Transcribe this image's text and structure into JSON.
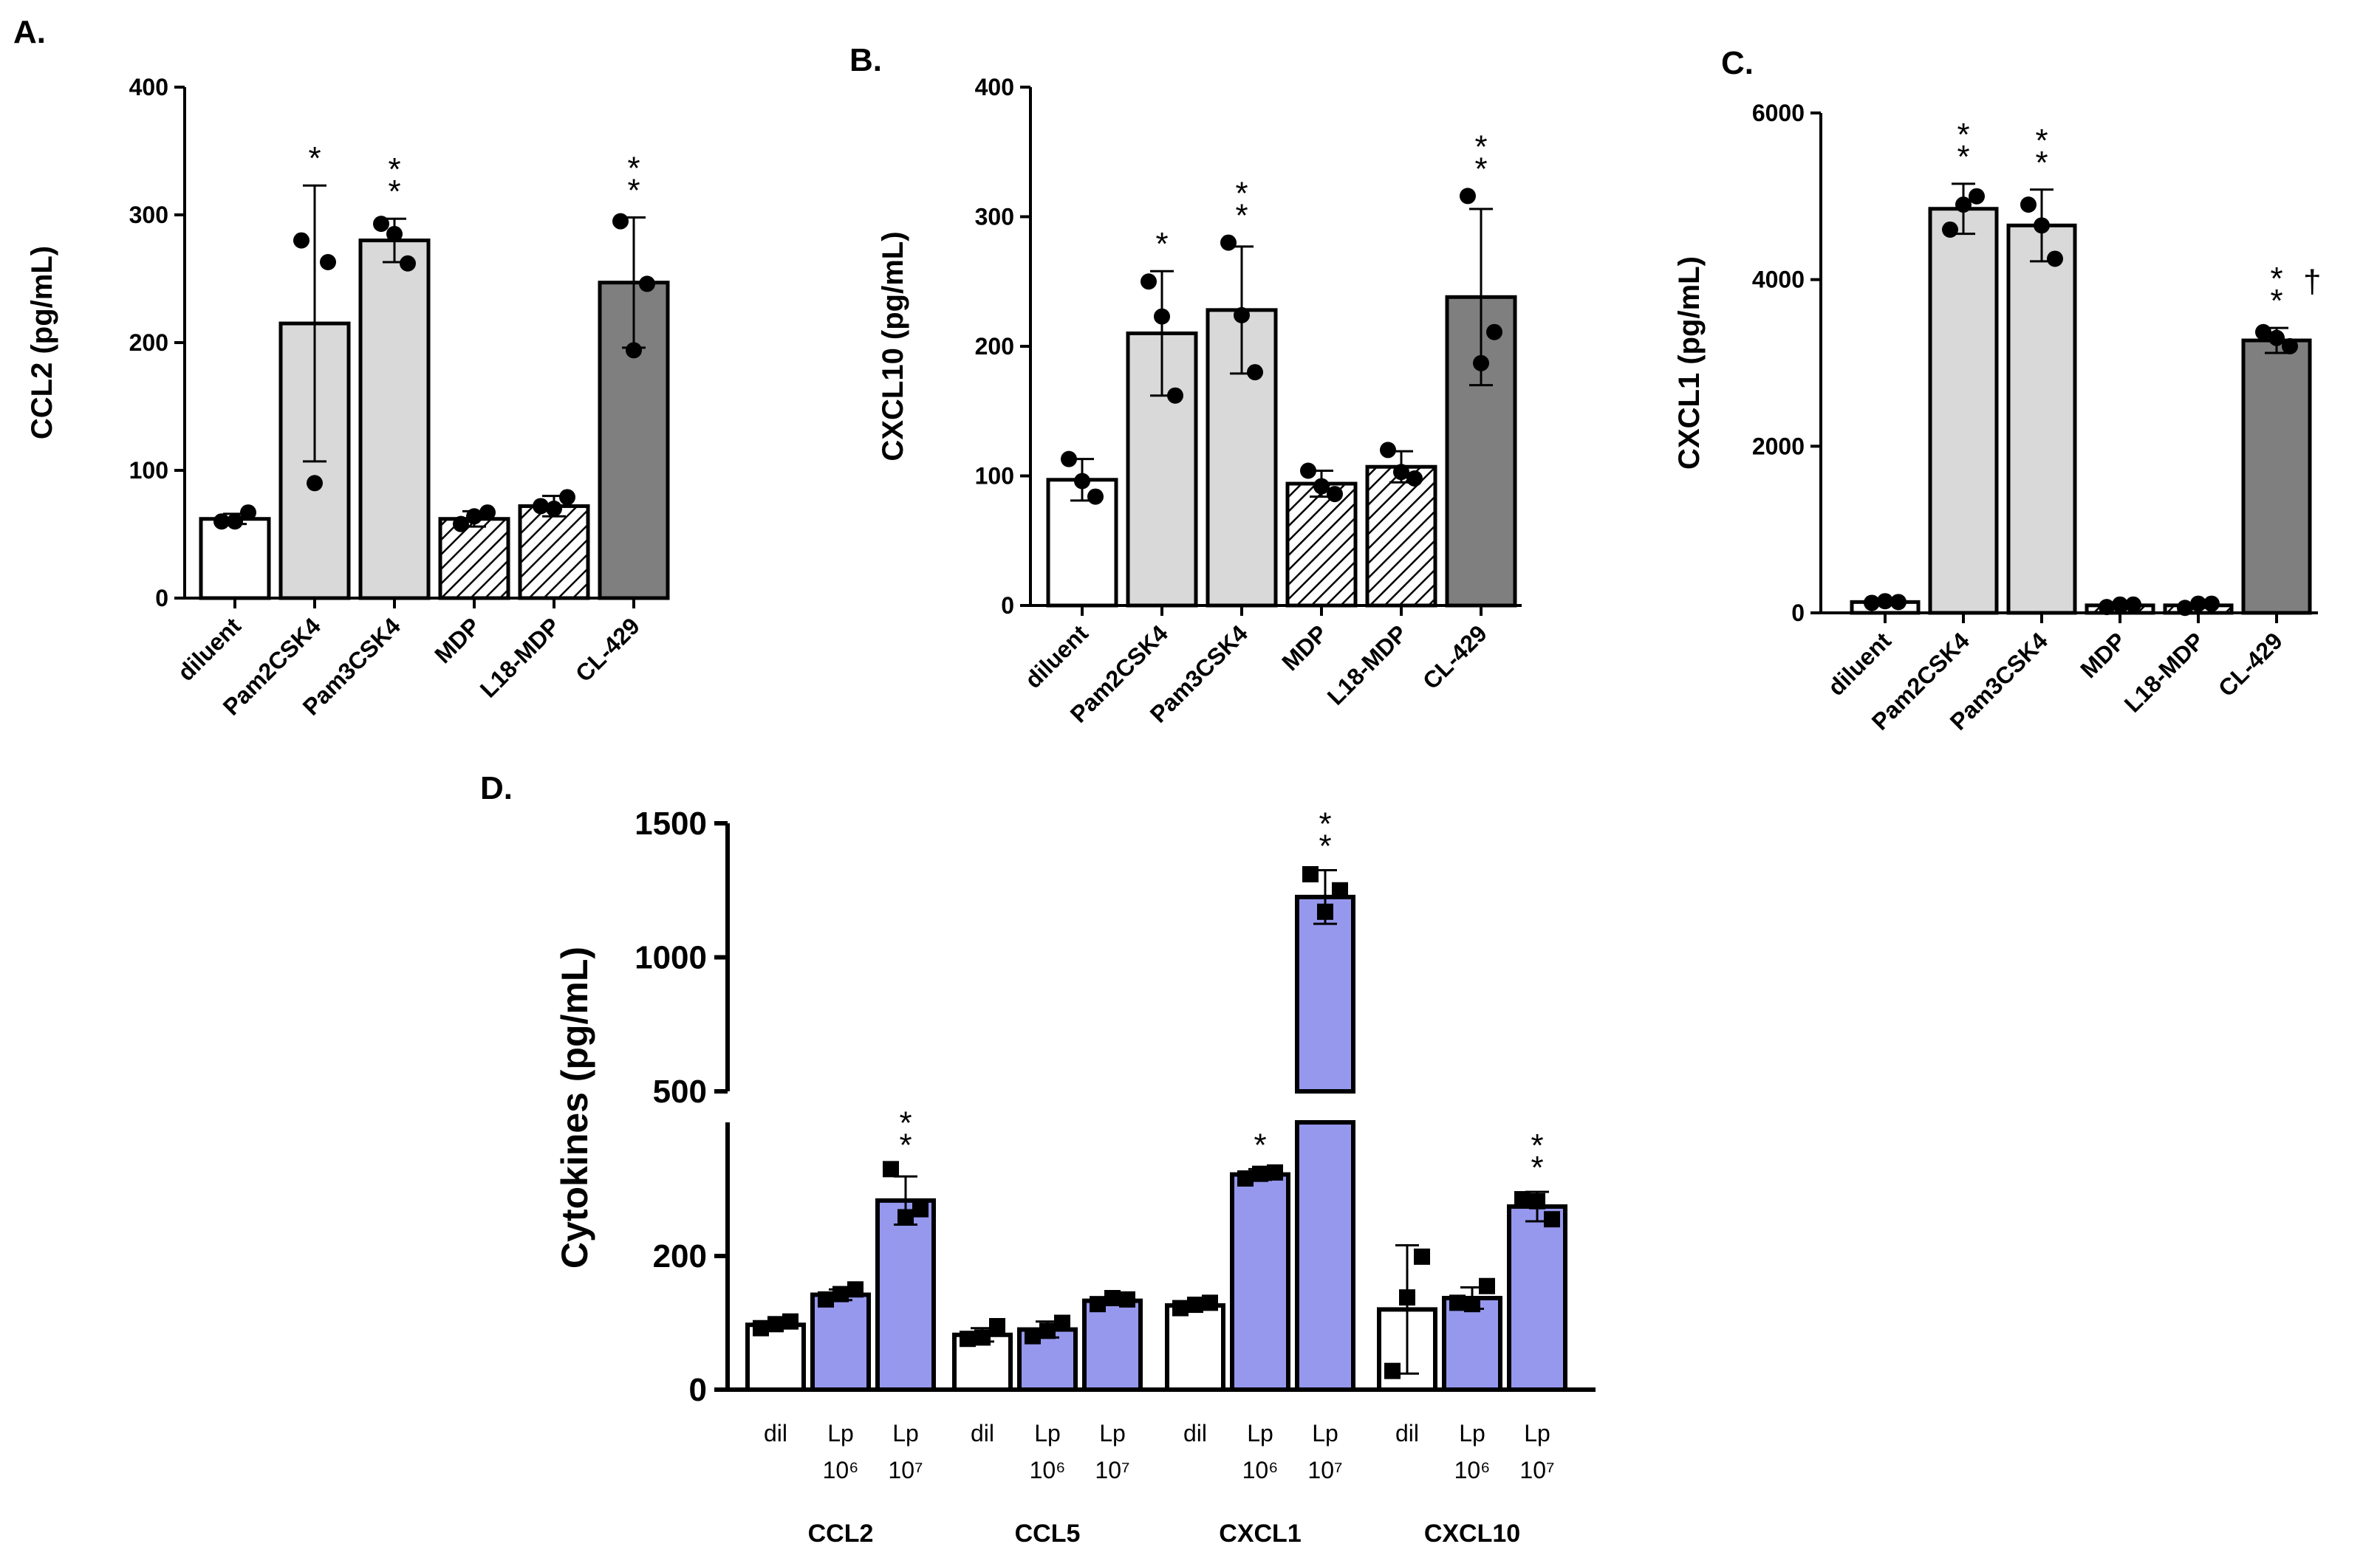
{
  "chart_data": [
    {
      "panel": "A.",
      "type": "bar",
      "ylabel": "CCL2 (pg/mL)",
      "ylim": [
        0,
        400
      ],
      "yticks": [
        "0",
        "100",
        "200",
        "300",
        "400"
      ],
      "categories": [
        "diluent",
        "Pam2CSK4",
        "Pam3CSK4",
        "MDP",
        "L18-MDP",
        "CL-429"
      ],
      "values": [
        62,
        215,
        280,
        62,
        72,
        247
      ],
      "errors": [
        4,
        108,
        17,
        6,
        8,
        51
      ],
      "points": [
        [
          60,
          67,
          60
        ],
        [
          280,
          263,
          90
        ],
        [
          293,
          262,
          285
        ],
        [
          58,
          67,
          64
        ],
        [
          72,
          79,
          70
        ],
        [
          295,
          246,
          194
        ]
      ],
      "significance": [
        "",
        "*",
        "**",
        "",
        "",
        "**"
      ],
      "fills": [
        "white",
        "light",
        "light",
        "hatched",
        "hatched",
        "dark"
      ]
    },
    {
      "panel": "B.",
      "type": "bar",
      "ylabel": "CXCL10 (pg/mL)",
      "ylim": [
        0,
        400
      ],
      "yticks": [
        "0",
        "100",
        "200",
        "300",
        "400"
      ],
      "categories": [
        "diluent",
        "Pam2CSK4",
        "Pam3CSK4",
        "MDP",
        "L18-MDP",
        "CL-429"
      ],
      "values": [
        97,
        210,
        228,
        94,
        107,
        238
      ],
      "errors": [
        16,
        48,
        49,
        10,
        12,
        68
      ],
      "points": [
        [
          113,
          84,
          96
        ],
        [
          250,
          162,
          223
        ],
        [
          280,
          180,
          224
        ],
        [
          104,
          86,
          92
        ],
        [
          120,
          98,
          103
        ],
        [
          316,
          211,
          187
        ]
      ],
      "significance": [
        "",
        "*",
        "**",
        "",
        "",
        "**"
      ],
      "fills": [
        "white",
        "light",
        "light",
        "hatched",
        "hatched",
        "dark"
      ]
    },
    {
      "panel": "C.",
      "type": "bar",
      "ylabel": "CXCL1 (pg/mL)",
      "ylim": [
        0,
        6000
      ],
      "yticks": [
        "0",
        "2000",
        "4000",
        "6000"
      ],
      "categories": [
        "diluent",
        "Pam2CSK4",
        "Pam3CSK4",
        "MDP",
        "L18-MDP",
        "CL-429"
      ],
      "values": [
        130,
        4850,
        4650,
        90,
        90,
        3270
      ],
      "errors": [
        20,
        300,
        430,
        20,
        30,
        150
      ],
      "points": [
        [
          120,
          130,
          140
        ],
        [
          4600,
          5000,
          4900
        ],
        [
          4900,
          4250,
          4650
        ],
        [
          70,
          100,
          100
        ],
        [
          60,
          110,
          110
        ],
        [
          3370,
          3200,
          3300
        ]
      ],
      "significance": [
        "",
        "**",
        "**",
        "",
        "",
        "**"
      ],
      "extra_marks": [
        "",
        "",
        "",
        "",
        "",
        "†"
      ],
      "fills": [
        "white",
        "light",
        "light",
        "hatched",
        "hatched",
        "dark"
      ]
    },
    {
      "panel": "D.",
      "type": "bar",
      "ylabel": "Cytokines (pg/mL)",
      "axis_break": [
        400,
        500
      ],
      "ylim": [
        0,
        1500
      ],
      "yticks": [
        "0",
        "200",
        "500",
        "1000",
        "1500"
      ],
      "groups": [
        "CCL2",
        "CCL5",
        "CXCL1",
        "CXCL10"
      ],
      "group_categories": [
        "dil",
        "Lp",
        "Lp"
      ],
      "category_exponents": [
        "",
        "10⁶",
        "10⁷"
      ],
      "values": [
        [
          97,
          142,
          283
        ],
        [
          82,
          90,
          133
        ],
        [
          126,
          322,
          1225
        ],
        [
          120,
          137,
          274
        ]
      ],
      "errors": [
        [
          5,
          8,
          36
        ],
        [
          10,
          12,
          5
        ],
        [
          5,
          8,
          100
        ],
        [
          96,
          16,
          22
        ]
      ],
      "points": [
        [
          [
            92,
            102,
            98
          ],
          [
            135,
            150,
            143
          ],
          [
            330,
            270,
            258
          ]
        ],
        [
          [
            76,
            95,
            78
          ],
          [
            80,
            100,
            88
          ],
          [
            128,
            135,
            137
          ]
        ],
        [
          [
            122,
            130,
            127
          ],
          [
            316,
            325,
            323
          ],
          [
            1310,
            1250,
            1170
          ]
        ],
        [
          [
            28,
            199,
            138
          ],
          [
            130,
            155,
            128
          ],
          [
            285,
            255,
            282
          ]
        ]
      ],
      "significance": [
        [
          "",
          "",
          "**"
        ],
        [
          "",
          "",
          ""
        ],
        [
          "",
          "*",
          "**"
        ],
        [
          "",
          "",
          "**"
        ]
      ],
      "fills": [
        "white",
        "purple",
        "purple"
      ],
      "colors": {
        "purple": "#9698EE",
        "light": "#D9D9D9",
        "dark": "#7F7F7F"
      }
    }
  ]
}
